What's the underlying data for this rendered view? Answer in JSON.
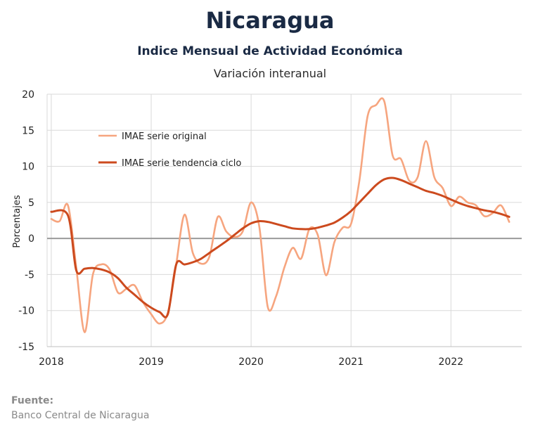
{
  "header": {
    "title": "Nicaragua",
    "subtitle": "Indice Mensual de  Actividad Económica",
    "subtitle2": "Variación interanual"
  },
  "footer": {
    "source_label": "Fuente:",
    "source_text": "Banco Central de Nicaragua"
  },
  "colors": {
    "original": "#f6a57f",
    "trend": "#cc4a1e",
    "grid": "#d9d9d9",
    "zero_line": "#9a9a9a",
    "title": "#1a2a44"
  },
  "chart_data": {
    "type": "line",
    "title": "Nicaragua",
    "subtitle": "Indice Mensual de  Actividad Económica",
    "ylabel": "Porcentajes",
    "xlabel": "",
    "ylim": [
      -15,
      20
    ],
    "yticks": [
      20,
      15,
      10,
      5,
      0,
      -5,
      -10,
      -15
    ],
    "x_ticks": [
      {
        "t": 0,
        "label": "2018"
      },
      {
        "t": 12,
        "label": "2019"
      },
      {
        "t": 24,
        "label": "2020"
      },
      {
        "t": 36,
        "label": "2021"
      },
      {
        "t": 48,
        "label": "2022"
      }
    ],
    "grid": true,
    "legend_position": "upper-left inside plot",
    "series": [
      {
        "name": "IMAE serie original",
        "color": "#f6a57f",
        "points": [
          [
            0,
            2.7
          ],
          [
            1,
            2.4
          ],
          [
            2,
            4.6
          ],
          [
            3,
            -4.0
          ],
          [
            4,
            -13.0
          ],
          [
            5,
            -5.0
          ],
          [
            6,
            -3.6
          ],
          [
            7,
            -4.3
          ],
          [
            8,
            -7.5
          ],
          [
            9,
            -7.0
          ],
          [
            10,
            -6.5
          ],
          [
            11,
            -8.8
          ],
          [
            12,
            -10.5
          ],
          [
            13,
            -11.8
          ],
          [
            14,
            -10.3
          ],
          [
            15,
            -3.6
          ],
          [
            16,
            3.3
          ],
          [
            17,
            -2.0
          ],
          [
            18,
            -3.5
          ],
          [
            19,
            -2.5
          ],
          [
            20,
            3.0
          ],
          [
            21,
            1.0
          ],
          [
            22,
            0.2
          ],
          [
            23,
            1.0
          ],
          [
            24,
            5.0
          ],
          [
            25,
            1.5
          ],
          [
            26,
            -9.5
          ],
          [
            27,
            -8.0
          ],
          [
            28,
            -4.0
          ],
          [
            29,
            -1.3
          ],
          [
            30,
            -2.8
          ],
          [
            31,
            1.3
          ],
          [
            32,
            0.5
          ],
          [
            33,
            -5.1
          ],
          [
            34,
            -0.5
          ],
          [
            35,
            1.5
          ],
          [
            36,
            2.0
          ],
          [
            37,
            8.0
          ],
          [
            38,
            17.0
          ],
          [
            39,
            18.5
          ],
          [
            40,
            19.0
          ],
          [
            41,
            11.5
          ],
          [
            42,
            11.0
          ],
          [
            43,
            8.0
          ],
          [
            44,
            8.5
          ],
          [
            45,
            13.5
          ],
          [
            46,
            8.5
          ],
          [
            47,
            7.0
          ],
          [
            48,
            4.5
          ],
          [
            49,
            5.8
          ],
          [
            50,
            5.0
          ],
          [
            51,
            4.6
          ],
          [
            52,
            3.1
          ],
          [
            53,
            3.5
          ],
          [
            54,
            4.6
          ],
          [
            55,
            2.3
          ]
        ]
      },
      {
        "name": "IMAE serie  tendencia ciclo",
        "color": "#cc4a1e",
        "points": [
          [
            0,
            3.7
          ],
          [
            2,
            3.2
          ],
          [
            3,
            -4.4
          ],
          [
            4,
            -4.2
          ],
          [
            5,
            -4.1
          ],
          [
            6,
            -4.3
          ],
          [
            7,
            -4.7
          ],
          [
            8,
            -5.5
          ],
          [
            9,
            -6.8
          ],
          [
            10,
            -7.8
          ],
          [
            11,
            -8.8
          ],
          [
            12,
            -9.6
          ],
          [
            13,
            -10.2
          ],
          [
            14,
            -10.5
          ],
          [
            15,
            -3.6
          ],
          [
            16,
            -3.6
          ],
          [
            17,
            -3.3
          ],
          [
            18,
            -2.8
          ],
          [
            19,
            -2.0
          ],
          [
            20,
            -1.2
          ],
          [
            21,
            -0.4
          ],
          [
            22,
            0.5
          ],
          [
            23,
            1.4
          ],
          [
            24,
            2.1
          ],
          [
            25,
            2.4
          ],
          [
            26,
            2.3
          ],
          [
            27,
            2.0
          ],
          [
            28,
            1.7
          ],
          [
            29,
            1.4
          ],
          [
            30,
            1.3
          ],
          [
            31,
            1.3
          ],
          [
            32,
            1.5
          ],
          [
            33,
            1.8
          ],
          [
            34,
            2.2
          ],
          [
            35,
            2.9
          ],
          [
            36,
            3.8
          ],
          [
            37,
            5.0
          ],
          [
            38,
            6.2
          ],
          [
            39,
            7.4
          ],
          [
            40,
            8.2
          ],
          [
            41,
            8.4
          ],
          [
            42,
            8.1
          ],
          [
            43,
            7.6
          ],
          [
            44,
            7.1
          ],
          [
            45,
            6.6
          ],
          [
            46,
            6.3
          ],
          [
            47,
            5.9
          ],
          [
            48,
            5.4
          ],
          [
            49,
            4.9
          ],
          [
            50,
            4.5
          ],
          [
            51,
            4.2
          ],
          [
            52,
            3.9
          ],
          [
            53,
            3.7
          ],
          [
            54,
            3.4
          ],
          [
            55,
            3.0
          ]
        ]
      }
    ]
  }
}
